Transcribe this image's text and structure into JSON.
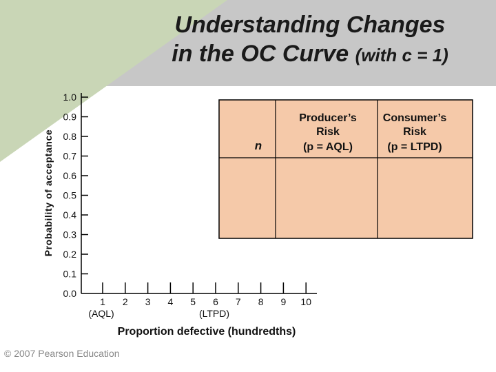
{
  "slide": {
    "title_line1": "Understanding Changes",
    "title_line2": "in the OC Curve",
    "title_suffix": "(with c = 1)",
    "copyright": "© 2007 Pearson Education"
  },
  "colors": {
    "accent_gray": "#c7c7c7",
    "accent_green": "#c9d6b6",
    "table_fill": "#f5c9a9"
  },
  "chart_data": {
    "type": "table",
    "ylabel": "Probability of acceptance",
    "xlabel": "Proportion defective (hundredths)",
    "ylim": [
      0.0,
      1.0
    ],
    "y_ticks": [
      "0.0",
      "0.1",
      "0.2",
      "0.3",
      "0.4",
      "0.5",
      "0.6",
      "0.7",
      "0.8",
      "0.9",
      "1.0"
    ],
    "x_ticks": [
      "1",
      "2",
      "3",
      "4",
      "5",
      "6",
      "7",
      "8",
      "9",
      "10"
    ],
    "x_annotations": [
      {
        "at": "1",
        "text": "(AQL)"
      },
      {
        "at": "6",
        "text": "(LTPD)"
      }
    ],
    "table_headers": {
      "n": "n",
      "producer": [
        "Producer’s",
        "Risk",
        "(p = AQL)"
      ],
      "consumer": [
        "Consumer’s",
        "Risk",
        "(p = LTPD)"
      ]
    }
  }
}
